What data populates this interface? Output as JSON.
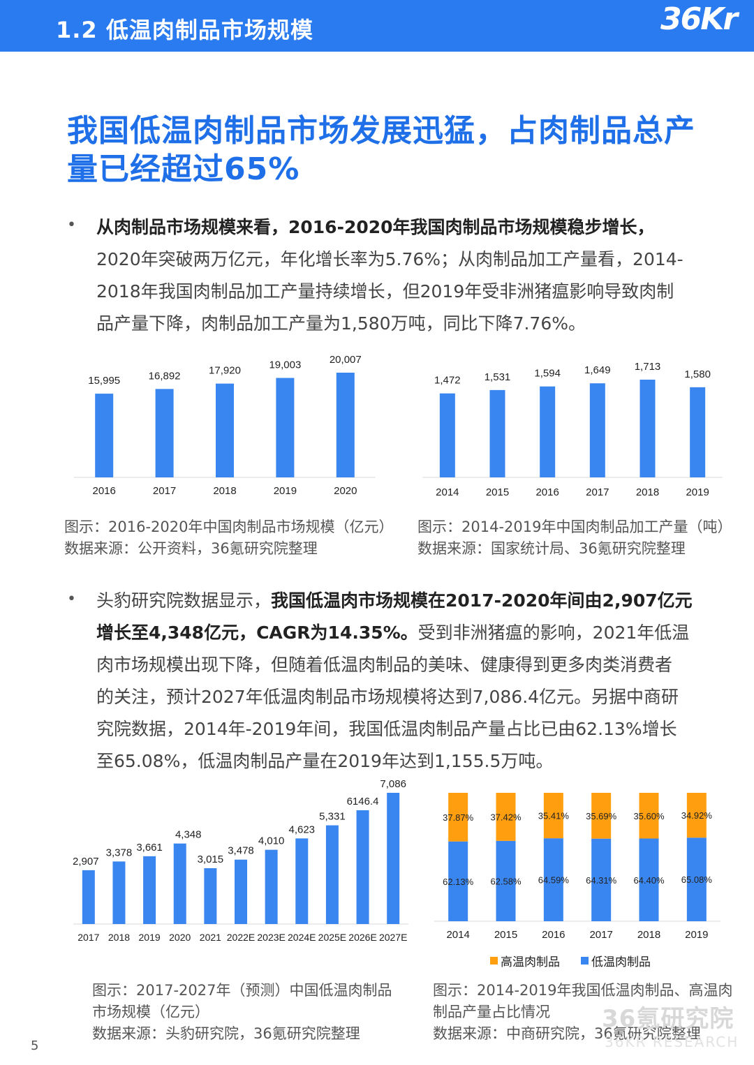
{
  "header": {
    "title": "1.2 低温肉制品市场规模",
    "logo_text": "36Kr"
  },
  "headline": {
    "line1": "我国低温肉制品市场发展迅猛，占肉制品总产",
    "line2": "量已经超过65%"
  },
  "para1": {
    "bold_lead": "从肉制品市场规模来看，2016-2020年我国肉制品市场规模稳步增长，",
    "line2": "2020年突破两万亿元，年化增长率为5.76%；从肉制品加工产量看，2014-",
    "line3": "2018年我国肉制品加工产量持续增长，但2019年受非洲猪瘟影响导致肉制",
    "line4": "品产量下降，肉制品加工产量为1,580万吨，同比下降7.76%。"
  },
  "para2": {
    "lead": "头豹研究院数据显示，",
    "bold1": "我国低温肉市场规模在2017-2020年间由2,907亿元",
    "bold2": "增长至4,348亿元，CAGR为14.35%。",
    "rest2": "受到非洲猪瘟的影响，2021年低温",
    "line3": "肉市场规模出现下降，但随着低温肉制品的美味、健康得到更多肉类消费者",
    "line4": "的关注，预计2027年低温肉制品市场规模将达到7,086.4亿元。另据中商研",
    "line5": "究院数据，2014年-2019年间，我国低温肉制品产量占比已由62.13%增长",
    "line6": "至65.08%，低温肉制品产量在2019年达到1,155.5万吨。"
  },
  "bullet_symbol": "•",
  "captions": {
    "c1_title": "图示：2016-2020年中国肉制品市场规模（亿元）",
    "c1_source": "数据来源：公开资料，36氪研究院整理",
    "c2_title": "图示：2014-2019年中国肉制品加工产量（吨）",
    "c2_source": "数据来源：国家统计局、36氪研究院整理",
    "c3_title_1": "图示：2017-2027年（预测）中国低温肉制品",
    "c3_title_2": "市场规模（亿元）",
    "c3_source": "数据来源：头豹研究院，36氪研究院整理",
    "c4_title_1": "图示：2014-2019年我国低温肉制品、高温肉",
    "c4_title_2": "制品产量占比情况",
    "c4_source": "数据来源：中商研究院，36氪研究院整理"
  },
  "legend": {
    "high": "高温肉制品",
    "low": "低温肉制品"
  },
  "colors": {
    "accent": "#2a7af0",
    "bar": "#3a86f0",
    "high": "#ff9f0f",
    "headline": "#1e6fe8"
  },
  "page_number": "5",
  "watermark": {
    "main": "36氪研究院",
    "sub": "36KR RESEARCH"
  },
  "chart_data": [
    {
      "type": "bar",
      "categories": [
        "2016",
        "2017",
        "2018",
        "2019",
        "2020"
      ],
      "values": [
        15995,
        16892,
        17920,
        19003,
        20007
      ],
      "labels": [
        "15,995",
        "16,892",
        "17,920",
        "19,003",
        "20,007"
      ],
      "title": "2016-2020年中国肉制品市场规模（亿元）"
    },
    {
      "type": "bar",
      "categories": [
        "2014",
        "2015",
        "2016",
        "2017",
        "2018",
        "2019"
      ],
      "values": [
        1472,
        1531,
        1594,
        1649,
        1713,
        1580
      ],
      "labels": [
        "1,472",
        "1,531",
        "1,594",
        "1,649",
        "1,713",
        "1,580"
      ],
      "title": "2014-2019年中国肉制品加工产量（吨）"
    },
    {
      "type": "bar",
      "categories": [
        "2017",
        "2018",
        "2019",
        "2020",
        "2021",
        "2022E",
        "2023E",
        "2024E",
        "2025E",
        "2026E",
        "2027E"
      ],
      "values": [
        2907,
        3378,
        3661,
        4348,
        3015,
        3478,
        4010,
        4623,
        5331,
        6146.4,
        7086
      ],
      "labels": [
        "2,907",
        "3,378",
        "3,661",
        "4,348",
        "3,015",
        "3,478",
        "4,010",
        "4,623",
        "5,331",
        "6146.4",
        "7,086"
      ],
      "title": "2017-2027年（预测）中国低温肉制品市场规模（亿元）"
    },
    {
      "type": "bar",
      "stacked": true,
      "categories": [
        "2014",
        "2015",
        "2016",
        "2017",
        "2018",
        "2019"
      ],
      "series": [
        {
          "name": "低温肉制品",
          "values": [
            62.13,
            62.58,
            64.59,
            64.31,
            64.4,
            65.08
          ],
          "labels": [
            "62.13%",
            "62.58%",
            "64.59%",
            "64.31%",
            "64.40%",
            "65.08%"
          ]
        },
        {
          "name": "高温肉制品",
          "values": [
            37.87,
            37.42,
            35.41,
            35.69,
            35.6,
            34.92
          ],
          "labels": [
            "37.87%",
            "37.42%",
            "35.41%",
            "35.69%",
            "35.60%",
            "34.92%"
          ]
        }
      ],
      "ylim": [
        0,
        100
      ],
      "legend": "bottom",
      "title": "2014-2019年我国低温肉制品、高温肉制品产量占比情况"
    }
  ]
}
